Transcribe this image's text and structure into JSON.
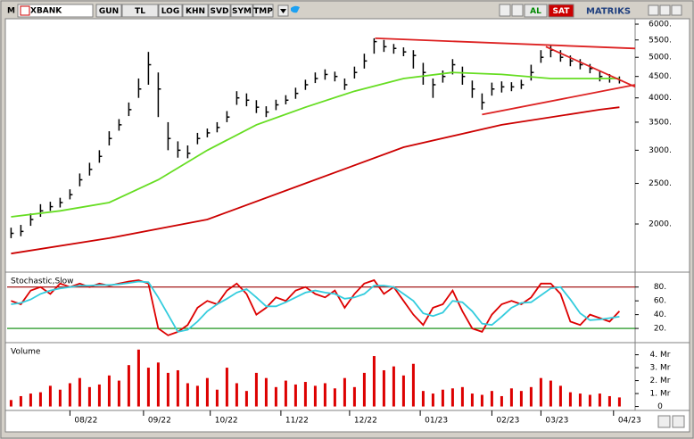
{
  "toolbar": {
    "menu": "M",
    "symbol": "XBANK",
    "buttons": [
      "GUN",
      "TL",
      "LOG",
      "KHN",
      "SVD",
      "SYM",
      "TMP"
    ],
    "buy": "AL",
    "sell": "SAT",
    "brand": "MATRIKS"
  },
  "chart_data": [
    {
      "type": "ohlc",
      "color": "#000000",
      "log": true,
      "xlim": [
        -0.4,
        63.6
      ],
      "ylim": [
        1550,
        6150
      ],
      "yticks": [
        {
          "value": 2000,
          "label": "2000."
        },
        {
          "value": 2500,
          "label": "2500."
        },
        {
          "value": 3000,
          "label": "3000."
        },
        {
          "value": 3500,
          "label": "3500."
        },
        {
          "value": 4000,
          "label": "4000."
        },
        {
          "value": 4500,
          "label": "4500."
        },
        {
          "value": 5000,
          "label": "5000."
        },
        {
          "value": 5500,
          "label": "5500."
        },
        {
          "value": 6000,
          "label": "6000."
        }
      ],
      "high": [
        1960,
        1990,
        2120,
        2230,
        2260,
        2310,
        2420,
        2640,
        2800,
        3000,
        3330,
        3560,
        3900,
        4450,
        5150,
        4600,
        3500,
        3150,
        3080,
        3300,
        3380,
        3500,
        3720,
        4150,
        4100,
        3950,
        3820,
        3960,
        4060,
        4230,
        4420,
        4600,
        4680,
        4620,
        4450,
        4750,
        5100,
        5550,
        5500,
        5380,
        5280,
        5200,
        4850,
        4450,
        4650,
        4950,
        4750,
        4400,
        4100,
        4350,
        4380,
        4360,
        4420,
        4800,
        5200,
        5350,
        5200,
        5050,
        4950,
        4820,
        4640,
        4560,
        4500
      ],
      "low": [
        1850,
        1870,
        1980,
        2080,
        2150,
        2190,
        2290,
        2460,
        2610,
        2800,
        3080,
        3340,
        3620,
        4000,
        4300,
        3600,
        3000,
        2880,
        2870,
        3100,
        3220,
        3310,
        3500,
        3850,
        3820,
        3680,
        3600,
        3740,
        3860,
        3980,
        4180,
        4340,
        4420,
        4380,
        4180,
        4450,
        4700,
        5100,
        5150,
        5100,
        5030,
        4700,
        4300,
        4000,
        4350,
        4550,
        4300,
        4000,
        3750,
        4050,
        4120,
        4150,
        4200,
        4400,
        4850,
        5000,
        4880,
        4760,
        4680,
        4580,
        4380,
        4350,
        4330
      ],
      "close": [
        1900,
        1920,
        2050,
        2150,
        2200,
        2250,
        2350,
        2550,
        2700,
        2900,
        3200,
        3450,
        3750,
        4200,
        4800,
        4200,
        3200,
        3000,
        2950,
        3200,
        3300,
        3400,
        3600,
        4000,
        3950,
        3800,
        3700,
        3850,
        3950,
        4100,
        4300,
        4450,
        4550,
        4500,
        4300,
        4600,
        4900,
        5450,
        5300,
        5250,
        5150,
        5050,
        4600,
        4300,
        4500,
        4800,
        4500,
        4200,
        3900,
        4200,
        4250,
        4250,
        4300,
        4600,
        5000,
        5200,
        5000,
        4900,
        4800,
        4700,
        4500,
        4450,
        4400
      ],
      "series": [
        {
          "color": "#66dd22",
          "x": [
            0,
            5,
            10,
            15,
            20,
            25,
            30,
            35,
            40,
            45,
            50,
            55,
            60,
            62
          ],
          "values": [
            2080,
            2150,
            2250,
            2550,
            3000,
            3450,
            3800,
            4150,
            4450,
            4600,
            4550,
            4450,
            4450,
            4450
          ]
        },
        {
          "color": "#cc0000",
          "x": [
            0,
            10,
            20,
            30,
            40,
            50,
            60,
            62
          ],
          "values": [
            1700,
            1850,
            2050,
            2500,
            3050,
            3450,
            3750,
            3800
          ]
        },
        {
          "color": "#dd2222",
          "x": [
            37.1,
            63.6
          ],
          "values": [
            5550,
            5250
          ]
        },
        {
          "color": "#dd2222",
          "x": [
            54.5,
            63.6
          ],
          "values": [
            5300,
            4250
          ]
        },
        {
          "color": "#dd2222",
          "x": [
            48,
            63.6
          ],
          "values": [
            3650,
            4300
          ]
        }
      ]
    },
    {
      "type": "line",
      "title": "Stochastic,Slow",
      "xlim": [
        -0.4,
        63.6
      ],
      "ylim": [
        2,
        99
      ],
      "yticks": [
        {
          "value": 20,
          "label": "20."
        },
        {
          "value": 40,
          "label": "40."
        },
        {
          "value": 60,
          "label": "60."
        },
        {
          "value": 80,
          "label": "80."
        }
      ],
      "hlines": [
        {
          "value": 80,
          "color": "#990000"
        },
        {
          "value": 20,
          "color": "#008800"
        }
      ],
      "series": [
        {
          "color": "#dd0000",
          "values": [
            60,
            55,
            75,
            80,
            70,
            85,
            80,
            85,
            80,
            85,
            82,
            85,
            88,
            90,
            85,
            20,
            10,
            15,
            25,
            50,
            60,
            55,
            75,
            85,
            70,
            40,
            50,
            65,
            60,
            75,
            80,
            70,
            65,
            75,
            50,
            70,
            85,
            90,
            70,
            80,
            60,
            40,
            25,
            50,
            55,
            75,
            45,
            20,
            15,
            40,
            55,
            60,
            55,
            65,
            85,
            85,
            70,
            30,
            25,
            40,
            35,
            30,
            45
          ]
        },
        {
          "color": "#33ccdd",
          "values": [
            55,
            57,
            62,
            70,
            75,
            78,
            80,
            82,
            82,
            83,
            83,
            84,
            86,
            88,
            87,
            65,
            40,
            15,
            18,
            30,
            45,
            55,
            63,
            72,
            77,
            65,
            52,
            52,
            58,
            65,
            72,
            75,
            72,
            70,
            63,
            65,
            70,
            82,
            82,
            80,
            70,
            60,
            42,
            38,
            43,
            60,
            58,
            45,
            27,
            25,
            37,
            50,
            57,
            58,
            68,
            78,
            80,
            62,
            42,
            32,
            33,
            35,
            37
          ]
        }
      ]
    },
    {
      "type": "bar",
      "title": "Volume",
      "color": "#dd0000",
      "xlim": [
        -0.4,
        63.6
      ],
      "ylim": [
        -0.1,
        4.8
      ],
      "yticks": [
        0,
        {
          "value": 1,
          "label": "1. Mr"
        },
        {
          "value": 2,
          "label": "2. Mr"
        },
        {
          "value": 3,
          "label": "3. Mr"
        },
        {
          "value": 4,
          "label": "4. Mr"
        }
      ],
      "xticks": [
        {
          "value": 6,
          "label": "08/22"
        },
        {
          "value": 13.5,
          "label": "09/22"
        },
        {
          "value": 20.3,
          "label": "10/22"
        },
        {
          "value": 27.5,
          "label": "11/22"
        },
        {
          "value": 34.5,
          "label": "12/22"
        },
        {
          "value": 41.7,
          "label": "01/23"
        },
        {
          "value": 49,
          "label": "02/23"
        },
        {
          "value": 54,
          "label": "03/23"
        },
        {
          "value": 61.4,
          "label": "04/23"
        }
      ],
      "values": [
        0.5,
        0.8,
        1.0,
        1.1,
        1.6,
        1.3,
        1.8,
        2.2,
        1.5,
        1.7,
        2.4,
        2.0,
        3.2,
        4.4,
        3.0,
        3.4,
        2.6,
        2.8,
        1.8,
        1.6,
        2.2,
        1.3,
        3.0,
        1.8,
        1.2,
        2.6,
        2.2,
        1.5,
        2.0,
        1.7,
        1.9,
        1.6,
        1.8,
        1.4,
        2.2,
        1.5,
        2.6,
        3.9,
        2.8,
        3.1,
        2.4,
        3.3,
        1.2,
        1.0,
        1.3,
        1.4,
        1.5,
        1.0,
        0.9,
        1.2,
        0.8,
        1.4,
        1.2,
        1.5,
        2.2,
        2.0,
        1.6,
        1.1,
        1.0,
        0.9,
        1.0,
        0.8,
        0.7
      ]
    }
  ]
}
